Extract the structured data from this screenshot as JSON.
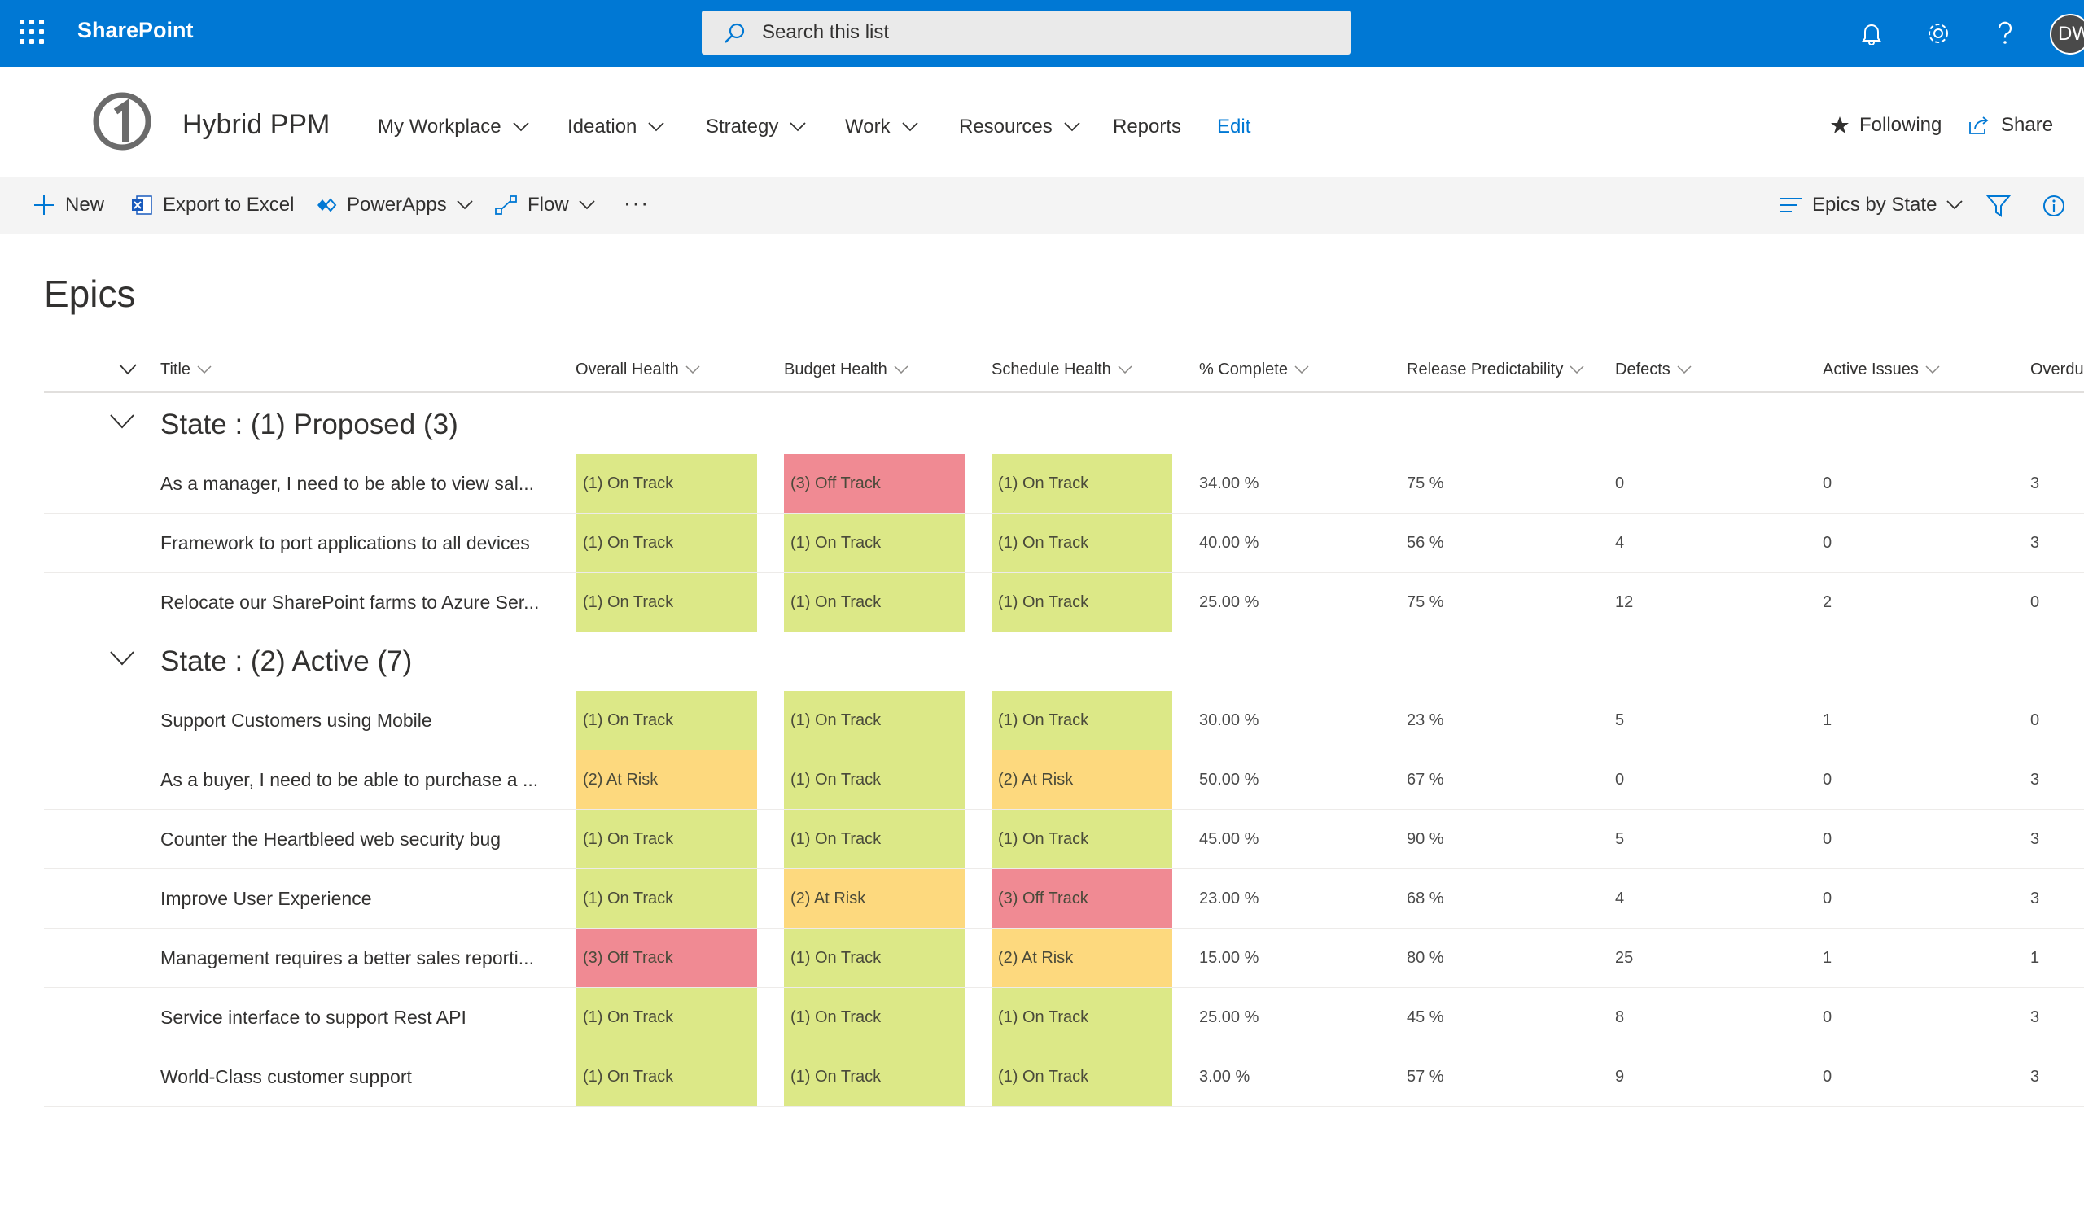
{
  "suite": {
    "brand": "SharePoint",
    "search_placeholder": "Search this list",
    "user_initials": "DW"
  },
  "site": {
    "title": "Hybrid PPM",
    "nav": [
      {
        "label": "My Workplace",
        "has_menu": true
      },
      {
        "label": "Ideation",
        "has_menu": true
      },
      {
        "label": "Strategy",
        "has_menu": true
      },
      {
        "label": "Work",
        "has_menu": true
      },
      {
        "label": "Resources",
        "has_menu": true
      },
      {
        "label": "Reports",
        "has_menu": false
      }
    ],
    "edit_label": "Edit",
    "following_label": "Following",
    "share_label": "Share"
  },
  "commandbar": {
    "new_label": "New",
    "export_label": "Export to Excel",
    "powerapps_label": "PowerApps",
    "flow_label": "Flow",
    "more_label": "···",
    "view_label": "Epics by State"
  },
  "page": {
    "title": "Epics",
    "columns": {
      "title": "Title",
      "overall": "Overall Health",
      "budget": "Budget Health",
      "schedule": "Schedule Health",
      "complete": "% Complete",
      "release": "Release Predictability",
      "defects": "Defects",
      "issues": "Active Issues",
      "overdue": "Overdu"
    }
  },
  "colors": {
    "on_track": "#dce887",
    "at_risk": "#fdd97e",
    "off_track": "#f08a93",
    "brand_blue": "#0078d4"
  },
  "groups": [
    {
      "label": "State : (1) Proposed (3)",
      "rows": [
        {
          "title": "As a manager, I need to be able to view sal...",
          "overall": "(1) On Track",
          "budget": "(3) Off Track",
          "schedule": "(1) On Track",
          "complete": "34.00 %",
          "release": "75 %",
          "defects": "0",
          "issues": "0",
          "overdue": "3"
        },
        {
          "title": "Framework to port applications to all devices",
          "overall": "(1) On Track",
          "budget": "(1) On Track",
          "schedule": "(1) On Track",
          "complete": "40.00 %",
          "release": "56 %",
          "defects": "4",
          "issues": "0",
          "overdue": "3"
        },
        {
          "title": "Relocate our SharePoint farms to Azure Ser...",
          "overall": "(1) On Track",
          "budget": "(1) On Track",
          "schedule": "(1) On Track",
          "complete": "25.00 %",
          "release": "75 %",
          "defects": "12",
          "issues": "2",
          "overdue": "0"
        }
      ]
    },
    {
      "label": "State : (2) Active (7)",
      "rows": [
        {
          "title": "Support Customers using Mobile",
          "overall": "(1) On Track",
          "budget": "(1) On Track",
          "schedule": "(1) On Track",
          "complete": "30.00 %",
          "release": "23 %",
          "defects": "5",
          "issues": "1",
          "overdue": "0"
        },
        {
          "title": "As a buyer, I need to be able to purchase a ...",
          "overall": "(2) At Risk",
          "budget": "(1) On Track",
          "schedule": "(2) At Risk",
          "complete": "50.00 %",
          "release": "67 %",
          "defects": "0",
          "issues": "0",
          "overdue": "3"
        },
        {
          "title": "Counter the Heartbleed web security bug",
          "overall": "(1) On Track",
          "budget": "(1) On Track",
          "schedule": "(1) On Track",
          "complete": "45.00 %",
          "release": "90 %",
          "defects": "5",
          "issues": "0",
          "overdue": "3"
        },
        {
          "title": "Improve User Experience",
          "overall": "(1) On Track",
          "budget": "(2) At Risk",
          "schedule": "(3) Off Track",
          "complete": "23.00 %",
          "release": "68 %",
          "defects": "4",
          "issues": "0",
          "overdue": "3"
        },
        {
          "title": "Management requires a better sales reporti...",
          "overall": "(3) Off Track",
          "budget": "(1) On Track",
          "schedule": "(2) At Risk",
          "complete": "15.00 %",
          "release": "80 %",
          "defects": "25",
          "issues": "1",
          "overdue": "1"
        },
        {
          "title": "Service interface to support Rest API",
          "overall": "(1) On Track",
          "budget": "(1) On Track",
          "schedule": "(1) On Track",
          "complete": "25.00 %",
          "release": "45 %",
          "defects": "8",
          "issues": "0",
          "overdue": "3"
        },
        {
          "title": "World-Class customer support",
          "overall": "(1) On Track",
          "budget": "(1) On Track",
          "schedule": "(1) On Track",
          "complete": "3.00 %",
          "release": "57 %",
          "defects": "9",
          "issues": "0",
          "overdue": "3"
        }
      ]
    }
  ]
}
